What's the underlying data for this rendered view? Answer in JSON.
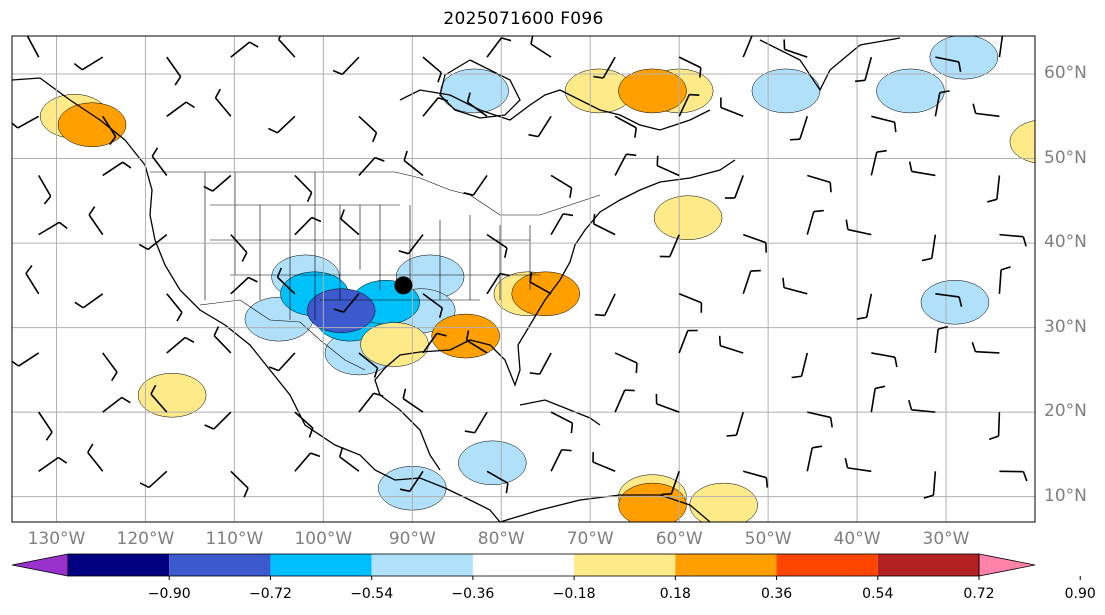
{
  "title": "2025071600 F096",
  "map": {
    "projection": "equirectangular",
    "extent": {
      "lon_min": -135,
      "lon_max": -20,
      "lat_min": 7,
      "lat_max": 64.5
    },
    "grid": true,
    "latitude_labels": [
      {
        "lat": 60,
        "text": "60°N"
      },
      {
        "lat": 50,
        "text": "50°N"
      },
      {
        "lat": 40,
        "text": "40°N"
      },
      {
        "lat": 30,
        "text": "30°N"
      },
      {
        "lat": 20,
        "text": "20°N"
      },
      {
        "lat": 10,
        "text": "10°N"
      }
    ],
    "longitude_labels": [
      {
        "lon": -130,
        "text": "130°W"
      },
      {
        "lon": -120,
        "text": "120°W"
      },
      {
        "lon": -110,
        "text": "110°W"
      },
      {
        "lon": -100,
        "text": "100°W"
      },
      {
        "lon": -90,
        "text": "90°W"
      },
      {
        "lon": -80,
        "text": "80°W"
      },
      {
        "lon": -70,
        "text": "70°W"
      },
      {
        "lon": -60,
        "text": "60°W"
      },
      {
        "lon": -50,
        "text": "50°W"
      },
      {
        "lon": -40,
        "text": "40°W"
      },
      {
        "lon": -30,
        "text": "30°W"
      }
    ],
    "marker": {
      "lon": -91,
      "lat": 35,
      "symbol": "filled-circle"
    },
    "anomaly_regions": [
      {
        "color": "#b0e0fa",
        "cells": [
          [
            -102,
            36
          ],
          [
            -105,
            31
          ],
          [
            -96,
            27
          ],
          [
            -88,
            36
          ],
          [
            -89,
            32
          ]
        ]
      },
      {
        "color": "#00c0fa",
        "cells": [
          [
            -101,
            34
          ],
          [
            -97,
            31
          ],
          [
            -93,
            33
          ]
        ]
      },
      {
        "color": "#3c5acd",
        "cells": [
          [
            -98,
            32
          ]
        ]
      },
      {
        "color": "#ffea8a",
        "cells": [
          [
            -92,
            28
          ],
          [
            -77,
            34
          ],
          [
            -60,
            58
          ],
          [
            -69,
            58
          ],
          [
            -128,
            55
          ],
          [
            -117,
            22
          ]
        ]
      },
      {
        "color": "#ffa000",
        "cells": [
          [
            -84,
            29
          ],
          [
            -75,
            34
          ],
          [
            -63,
            58
          ],
          [
            -126,
            54
          ]
        ]
      },
      {
        "color": "#b0e0fa",
        "cells": [
          [
            -83,
            58
          ],
          [
            -48,
            58
          ],
          [
            -34,
            58
          ],
          [
            -28,
            62
          ],
          [
            -29,
            33
          ]
        ]
      },
      {
        "color": "#ffea8a",
        "cells": [
          [
            -19,
            52
          ],
          [
            -59,
            43
          ],
          [
            -63,
            10
          ],
          [
            -55,
            9
          ]
        ]
      },
      {
        "color": "#b0e0fa",
        "cells": [
          [
            -90,
            11
          ],
          [
            -81,
            14
          ]
        ]
      },
      {
        "color": "#ffa000",
        "cells": [
          [
            -63,
            9
          ]
        ]
      }
    ]
  },
  "colorbar": {
    "colors": [
      "#9932cc",
      "#000080",
      "#3c5acd",
      "#00bfff",
      "#b0e0fa",
      "#ffffff",
      "#ffea8a",
      "#ffa000",
      "#ff4500",
      "#b22222",
      "#ff82ab"
    ],
    "ticks": [
      "−0.90",
      "−0.72",
      "−0.54",
      "−0.36",
      "−0.18",
      "0.18",
      "0.36",
      "0.54",
      "0.72",
      "0.90"
    ]
  }
}
